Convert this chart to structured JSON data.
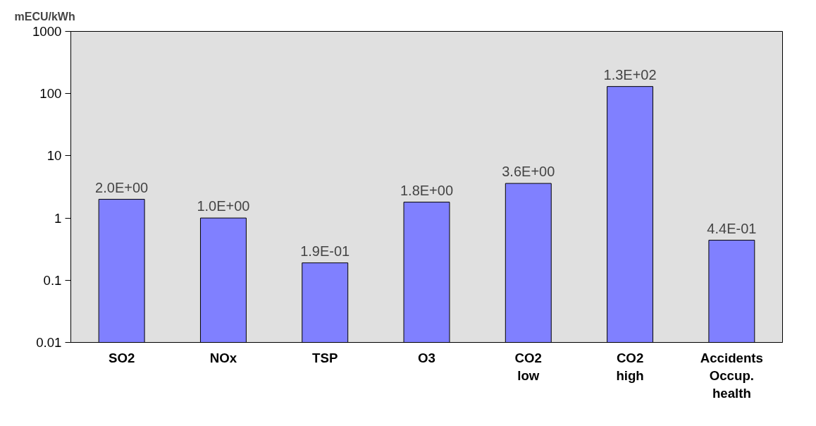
{
  "chart_data": {
    "type": "bar",
    "ylabel": "mECU/kWh",
    "categories": [
      "SO2",
      "NOx",
      "TSP",
      "O3",
      "CO2\nlow",
      "CO2\nhigh",
      "Accidents\nOccup.\nhealth"
    ],
    "values": [
      2.0,
      1.0,
      0.19,
      1.8,
      3.6,
      130,
      0.44
    ],
    "value_labels": [
      "2.0E+00",
      "1.0E+00",
      "1.9E-01",
      "1.8E+00",
      "3.6E+00",
      "1.3E+02",
      "4.4E-01"
    ],
    "color": "#8080ff",
    "log": "y",
    "ylim": [
      0.01,
      1000
    ],
    "yticks": [
      0.01,
      0.1,
      1,
      10,
      100,
      1000
    ],
    "grid": false
  }
}
